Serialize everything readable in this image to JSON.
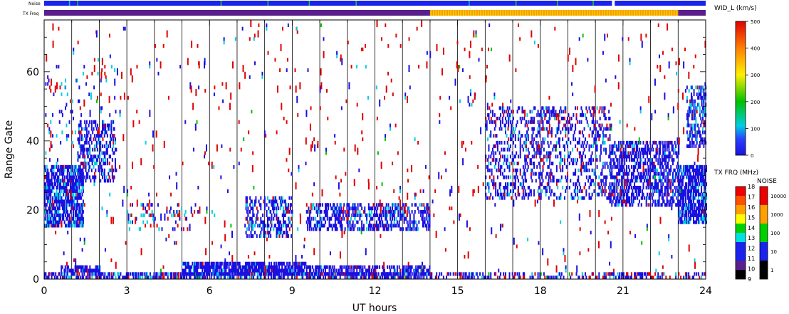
{
  "chart_data": {
    "type": "heatmap",
    "xlabel": "UT hours",
    "ylabel": "Range Gate",
    "xlim": [
      0,
      24
    ],
    "ylim": [
      0,
      75
    ],
    "x_ticks": [
      0,
      3,
      6,
      9,
      12,
      15,
      18,
      21,
      24
    ],
    "y_ticks": [
      0,
      20,
      40,
      60
    ],
    "hour_gridlines": [
      1,
      2,
      3,
      4,
      5,
      6,
      7,
      8,
      9,
      10,
      11,
      12,
      13,
      14,
      15,
      16,
      17,
      18,
      19,
      20,
      21,
      22,
      23
    ],
    "top_bars": {
      "noise_label": "Noise",
      "txfreq_label": "TX Freq",
      "noise_base_color": "#1a22ee",
      "noise_ticks": [
        {
          "x": 1.2,
          "color": "#22cc22"
        },
        {
          "x": 6.4,
          "color": "#22cc22"
        },
        {
          "x": 8.1,
          "color": "#22cc22"
        },
        {
          "x": 9.6,
          "color": "#22cc22"
        },
        {
          "x": 11.3,
          "color": "#22cc22"
        },
        {
          "x": 17.1,
          "color": "#22cc22"
        },
        {
          "x": 18.6,
          "color": "#22cc22"
        },
        {
          "x": 19.9,
          "color": "#22cc22"
        },
        {
          "x": 0.9,
          "color": "#00cccc"
        },
        {
          "x": 15.4,
          "color": "#00cccc"
        }
      ],
      "noise_gaps": [
        [
          20.6,
          20.7
        ]
      ],
      "txfreq_segments": [
        {
          "x0": 0,
          "x1": 14,
          "color": "#5a1f8c"
        },
        {
          "x0": 14,
          "x1": 23,
          "color": "#f4a000"
        },
        {
          "x0": 23,
          "x1": 24,
          "color": "#5a1f8c"
        }
      ]
    },
    "width_colorbar": {
      "title": "WID_L (km/s)",
      "min": 0,
      "max": 500,
      "ticks": [
        0,
        100,
        200,
        300,
        400,
        500
      ],
      "stops": [
        {
          "v": 0,
          "color": "#1a10e0"
        },
        {
          "v": 60,
          "color": "#2a40ff"
        },
        {
          "v": 110,
          "color": "#00cfe0"
        },
        {
          "v": 200,
          "color": "#00c000"
        },
        {
          "v": 300,
          "color": "#fff000"
        },
        {
          "v": 400,
          "color": "#ff8000"
        },
        {
          "v": 500,
          "color": "#e00000"
        }
      ]
    },
    "txfreq_colorbar": {
      "title": "TX FRQ (MHz)",
      "ticks": [
        "9",
        "10",
        "11",
        "12",
        "13",
        "14",
        "15",
        "16",
        "17",
        "18"
      ],
      "colors": [
        "#000000",
        "#5a1f8c",
        "#1a22ee",
        "#1a22ee",
        "#00e0e0",
        "#00d000",
        "#ffff00",
        "#ffa000",
        "#ff5000",
        "#ee0000"
      ]
    },
    "noise_colorbar": {
      "title": "NOISE",
      "ticks": [
        "1",
        "10",
        "100",
        "1000",
        "10000"
      ],
      "colors": [
        "#000000",
        "#1a22ee",
        "#00d000",
        "#ffa000",
        "#ee0000"
      ]
    },
    "scatter_colors": {
      "red": "#e00000",
      "blue": "#1a10e0",
      "cyan": "#00d0e0",
      "green": "#00c000"
    }
  }
}
